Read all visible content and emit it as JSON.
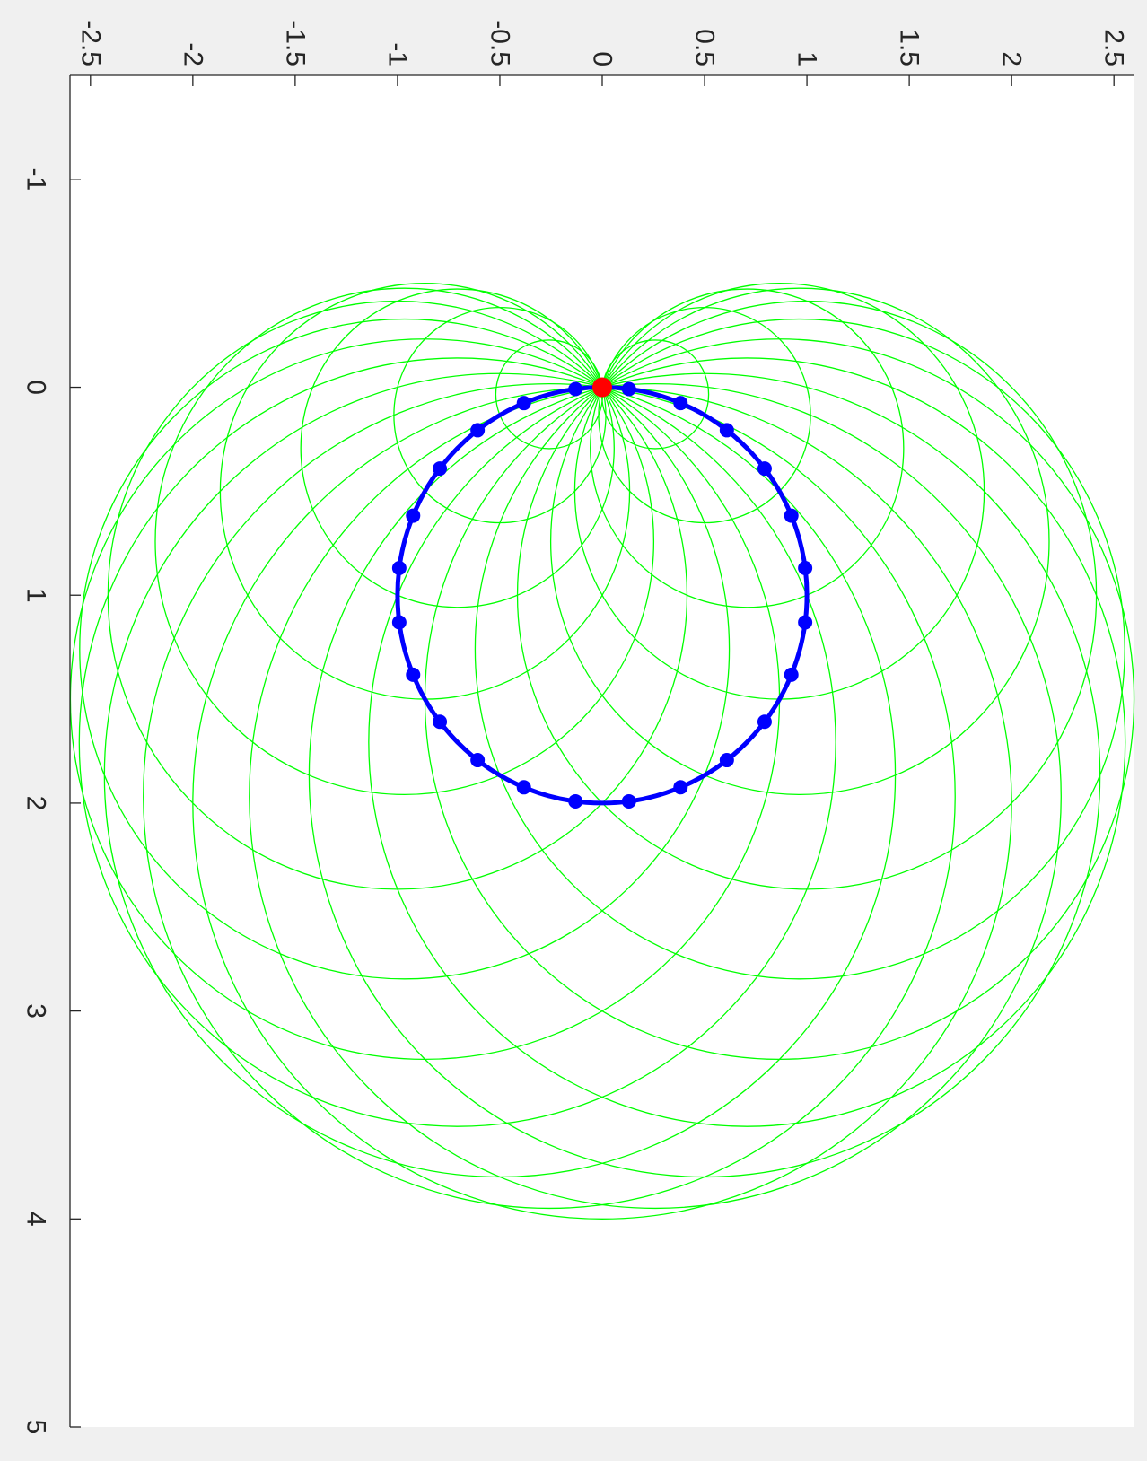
{
  "chart_data": {
    "type": "line",
    "orientation": "rotated 90 degrees clockwise",
    "title": "",
    "xlabel": "",
    "ylabel": "",
    "grid": false,
    "legend": "none",
    "x_axis": {
      "lim": [
        -1.5,
        5
      ],
      "ticks": [
        -1,
        0,
        1,
        2,
        3,
        4,
        5
      ],
      "tick_labels": [
        "-1",
        "0",
        "1",
        "2",
        "3",
        "4",
        "5"
      ]
    },
    "y_axis": {
      "lim": [
        -2.6,
        2.6
      ],
      "ticks": [
        -2.5,
        -2,
        -1.5,
        -1,
        -0.5,
        0,
        0.5,
        1,
        1.5,
        2,
        2.5
      ],
      "tick_labels": [
        "-2.5",
        "-2",
        "-1.5",
        "-1",
        "-0.5",
        "0",
        "0.5",
        "1",
        "1.5",
        "2",
        "2.5"
      ]
    },
    "series": [
      {
        "kind": "circles",
        "color": "#00ff00",
        "description_values": "circles centred on the base circle, each passing through (0,0)",
        "count": 24,
        "center_circle_center": [
          1,
          0
        ],
        "center_circle_radius": 1
      },
      {
        "kind": "base-circle",
        "color": "#0000ff",
        "center": [
          1,
          0
        ],
        "radius": 1,
        "marker_count": 24,
        "marker_angle_offset_deg": 7.5
      },
      {
        "kind": "point",
        "color": "#ff0000",
        "x": [
          0
        ],
        "y": [
          0
        ]
      }
    ]
  },
  "colors": {
    "figure_background": "#f0f0f0",
    "axes_background": "#ffffff",
    "axis_color": "#262626"
  }
}
